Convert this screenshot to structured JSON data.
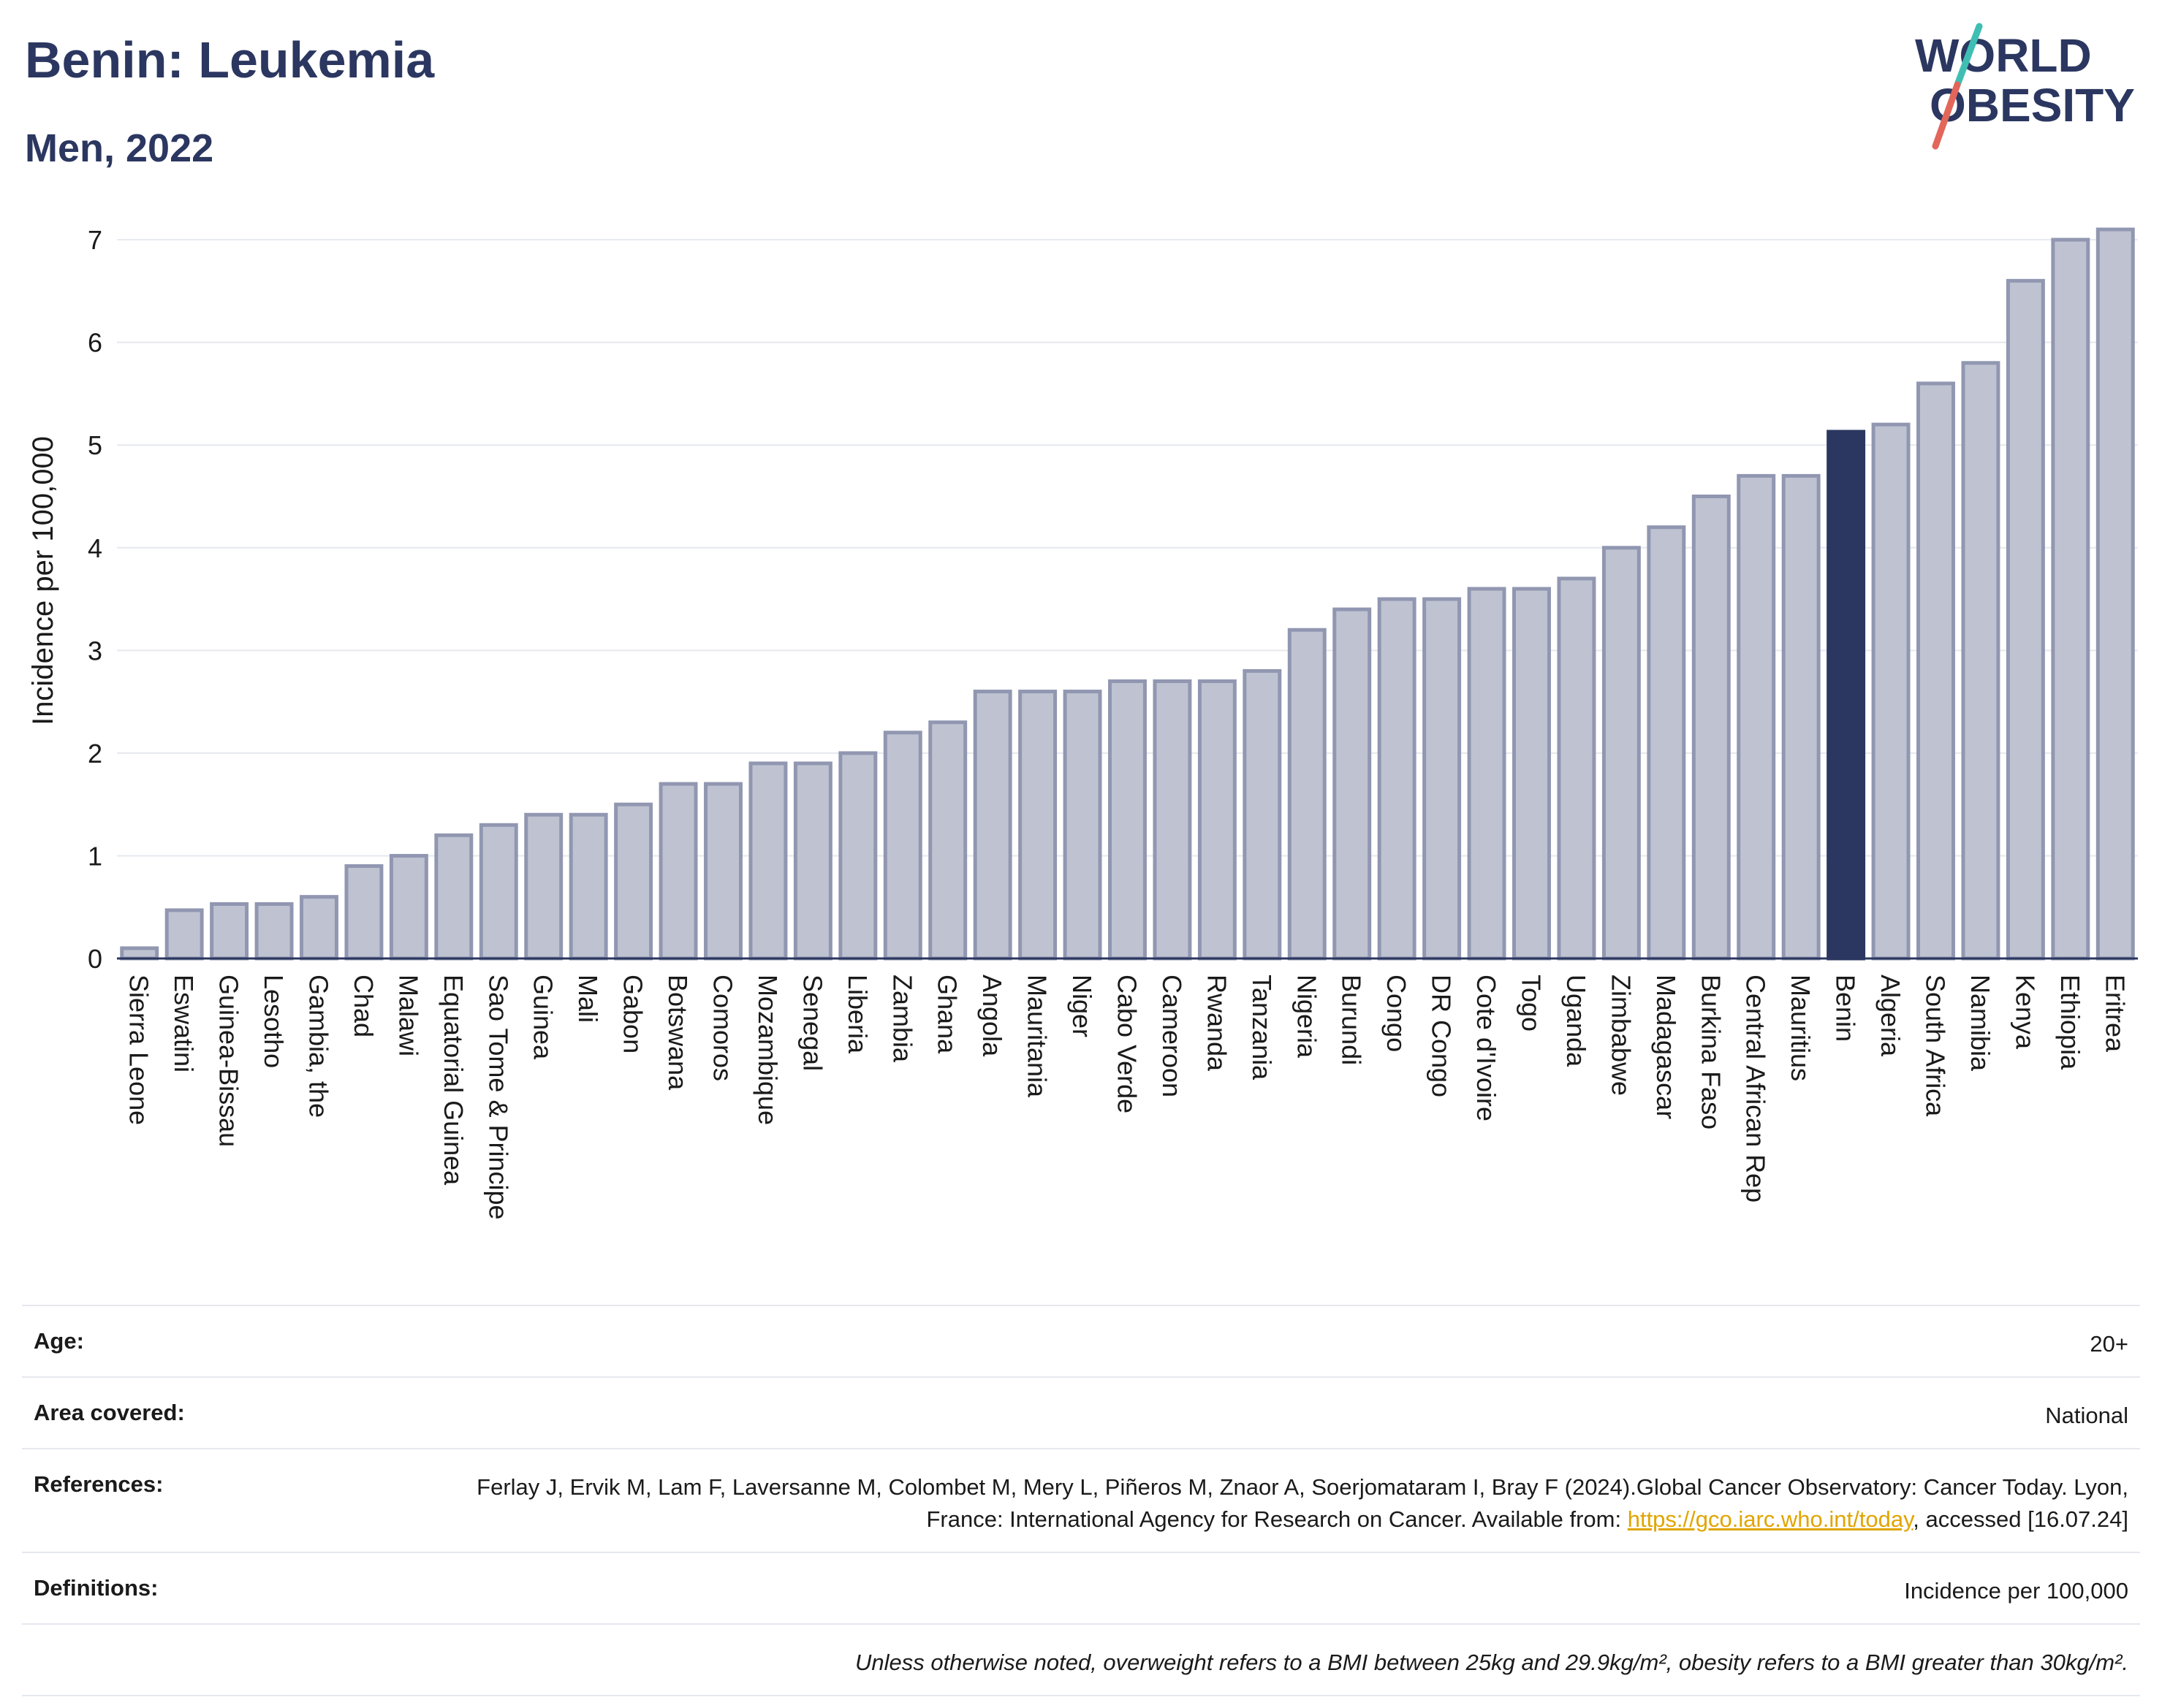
{
  "header": {
    "title": "Benin: Leukemia",
    "subtitle": "Men, 2022"
  },
  "logo": {
    "line1": "WORLD",
    "line2": "OBESITY",
    "colors": {
      "text": "#2b3760",
      "slash_teal": "#3fbfb3",
      "slash_red": "#e2665a"
    }
  },
  "chart_data": {
    "type": "bar",
    "ylabel": "Incidence per 100,000",
    "xlabel": "",
    "ylim": [
      0,
      7.2
    ],
    "yticks": [
      0,
      1,
      2,
      3,
      4,
      5,
      6,
      7
    ],
    "grid": true,
    "highlight": "Benin",
    "colors": {
      "bar": "#bfc3d1",
      "bar_edge": "#9197b1",
      "highlight": "#2b3760",
      "grid": "#e6e8ee"
    },
    "categories": [
      "Sierra Leone",
      "Eswatini",
      "Guinea-Bissau",
      "Lesotho",
      "Gambia, the",
      "Chad",
      "Malawi",
      "Equatorial Guinea",
      "Sao Tome & Principe",
      "Guinea",
      "Mali",
      "Gabon",
      "Botswana",
      "Comoros",
      "Mozambique",
      "Senegal",
      "Liberia",
      "Zambia",
      "Ghana",
      "Angola",
      "Mauritania",
      "Niger",
      "Cabo Verde",
      "Cameroon",
      "Rwanda",
      "Tanzania",
      "Nigeria",
      "Burundi",
      "Congo",
      "DR Congo",
      "Cote d'Ivoire",
      "Togo",
      "Uganda",
      "Zimbabwe",
      "Madagascar",
      "Burkina Faso",
      "Central African Rep",
      "Mauritius",
      "Benin",
      "Algeria",
      "South Africa",
      "Namibia",
      "Kenya",
      "Ethiopia",
      "Eritrea"
    ],
    "values": [
      0.1,
      0.47,
      0.53,
      0.53,
      0.6,
      0.9,
      1.0,
      1.2,
      1.3,
      1.4,
      1.4,
      1.5,
      1.7,
      1.7,
      1.9,
      1.9,
      2.0,
      2.2,
      2.3,
      2.6,
      2.6,
      2.6,
      2.7,
      2.7,
      2.7,
      2.8,
      3.2,
      3.4,
      3.5,
      3.5,
      3.6,
      3.6,
      3.7,
      4.0,
      4.2,
      4.5,
      4.7,
      4.7,
      5.13,
      5.2,
      5.6,
      5.8,
      6.6,
      7.0,
      7.1
    ]
  },
  "info": {
    "age_label": "Age:",
    "age_value": "20+",
    "area_label": "Area covered:",
    "area_value": "National",
    "references_label": "References:",
    "references_text": "Ferlay J, Ervik M, Lam F, Laversanne M, Colombet M, Mery L, Piñeros M, Znaor A, Soerjomataram I, Bray F (2024).Global Cancer Observatory: Cancer Today. Lyon, France: International Agency for Research on Cancer. Available from:",
    "references_link": "https://gco.iarc.who.int/today",
    "references_tail": ", accessed [16.07.24]",
    "definitions_label": "Definitions:",
    "definitions_value": "Incidence per 100,000",
    "note": "Unless otherwise noted, overweight refers to a BMI between 25kg and 29.9kg/m², obesity refers to a BMI greater than 30kg/m²."
  }
}
